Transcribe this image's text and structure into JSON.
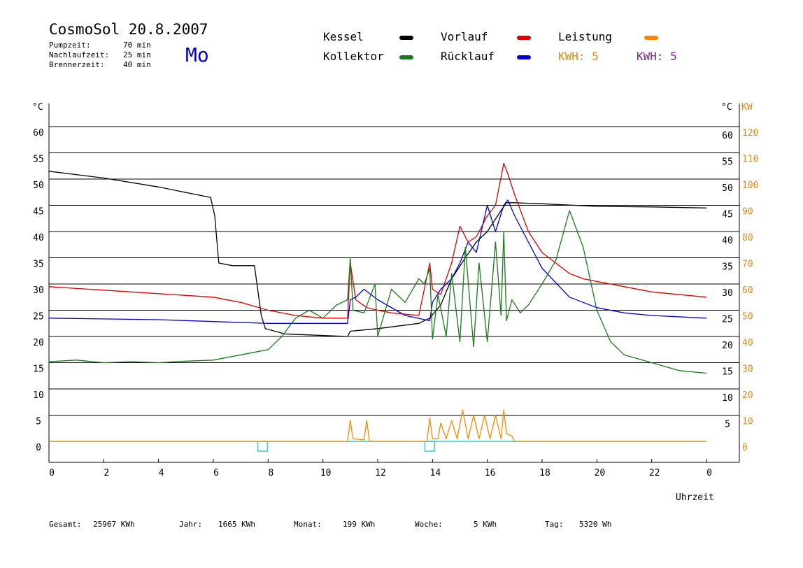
{
  "header": {
    "title": "CosmoSol 20.8.2007",
    "params": [
      {
        "label": "Pumpzeit:",
        "value": "70 min"
      },
      {
        "label": "Nachlaufzeit:",
        "value": "25 min"
      },
      {
        "label": "Brennerzeit:",
        "value": "40 min"
      }
    ],
    "day": "Mo"
  },
  "legend": {
    "kessel": {
      "label": "Kessel",
      "color": "#000000"
    },
    "vorlauf": {
      "label": "Vorlauf",
      "color": "#dd0000"
    },
    "leistung": {
      "label": "Leistung",
      "color": "#ff8800"
    },
    "kollektor": {
      "label": "Kollektor",
      "color": "#1a7a1a"
    },
    "ruecklauf": {
      "label": "Rücklauf",
      "color": "#0000cc"
    },
    "kwh1": {
      "label": "KWH: 5",
      "color": "#e08a1a"
    },
    "kwh2": {
      "label": "KWH: 5",
      "color": "#7a2a8a"
    }
  },
  "footer": {
    "gesamt_label": "Gesamt:",
    "gesamt": "25967 KWh",
    "jahr_label": "Jahr:",
    "jahr": "1665 KWh",
    "monat_label": "Monat:",
    "monat": "199 KWh",
    "woche_label": "Woche:",
    "woche": "5 KWh",
    "tag_label": "Tag:",
    "tag": "5320 Wh"
  },
  "chart_data": {
    "type": "line",
    "xlabel": "Uhrzeit",
    "ylabel_left": "°C",
    "ylabel_right_temp": "°C",
    "ylabel_right_power": "KW",
    "xlim": [
      0,
      24
    ],
    "ylim": [
      0,
      60
    ],
    "y2lim": [
      0,
      120
    ],
    "x_ticks": [
      "0",
      "2",
      "4",
      "6",
      "8",
      "10",
      "12",
      "14",
      "16",
      "18",
      "20",
      "22",
      "0"
    ],
    "y_ticks": [
      "0",
      "5",
      "10",
      "15",
      "20",
      "25",
      "30",
      "35",
      "40",
      "45",
      "50",
      "55",
      "60"
    ],
    "y_ticks_right": [
      "5",
      "10",
      "15",
      "20",
      "25",
      "30",
      "35",
      "40",
      "45",
      "50",
      "55",
      "60"
    ],
    "y2_ticks": [
      "0",
      "10",
      "20",
      "30",
      "40",
      "50",
      "60",
      "70",
      "80",
      "90",
      "100",
      "110",
      "120"
    ],
    "grid": true,
    "colors": {
      "kessel": "#000000",
      "vorlauf": "#dd0000",
      "ruecklauf": "#0000cc",
      "kollektor": "#1a7a1a",
      "leistung": "#ff8800",
      "kwh": "#7a2a8a",
      "pump": "#33cccc"
    },
    "series": [
      {
        "name": "Kessel",
        "x": [
          0,
          2,
          4,
          5.9,
          6.05,
          6.2,
          6.7,
          7.5,
          7.75,
          7.9,
          8.6,
          9.5,
          10.9,
          11.0,
          12.0,
          13.5,
          13.9,
          14.3,
          14.7,
          15.2,
          15.6,
          16.0,
          16.5,
          16.7,
          17.0,
          18.0,
          20.0,
          22.0,
          24.0
        ],
        "y": [
          51.5,
          50.2,
          48.5,
          46.5,
          43,
          34,
          33.5,
          33.5,
          24,
          21.5,
          20.5,
          20.3,
          20.0,
          21.0,
          21.5,
          22.5,
          23.5,
          26,
          31,
          35,
          38,
          40,
          44,
          45.5,
          45.5,
          45.3,
          44.8,
          44.7,
          44.5
        ]
      },
      {
        "name": "Vorlauf",
        "x": [
          0,
          3,
          6,
          7,
          8,
          9,
          10,
          10.9,
          11.0,
          11.2,
          11.6,
          12.0,
          12.5,
          13.5,
          13.9,
          14.0,
          14.3,
          14.7,
          15.0,
          15.3,
          15.6,
          16.0,
          16.3,
          16.6,
          16.75,
          17.0,
          17.5,
          18.0,
          19.0,
          19.5,
          20.0,
          21.0,
          22.0,
          24.0
        ],
        "y": [
          29.5,
          28.5,
          27.5,
          26.5,
          25,
          24,
          23.5,
          23.5,
          34,
          27,
          25.5,
          25,
          24.5,
          24,
          34,
          29,
          28,
          34,
          41,
          38,
          39,
          43,
          45,
          53,
          51,
          47,
          40,
          36,
          32,
          31,
          30.5,
          29.5,
          28.5,
          27.5
        ]
      },
      {
        "name": "Rücklauf",
        "x": [
          0,
          4,
          8,
          10,
          10.9,
          11.0,
          11.2,
          11.5,
          12.0,
          13.0,
          13.9,
          14.0,
          14.3,
          14.7,
          15.0,
          15.3,
          15.6,
          16.0,
          16.3,
          16.6,
          16.75,
          17.0,
          17.5,
          18.0,
          19.0,
          20.0,
          21.0,
          22.0,
          24.0
        ],
        "y": [
          23.5,
          23.2,
          22.5,
          22.5,
          22.5,
          27,
          27.5,
          29,
          27,
          24,
          23,
          26.5,
          29,
          31,
          34,
          38,
          36,
          45,
          40,
          45,
          46,
          43,
          38,
          33,
          27.5,
          25.5,
          24.5,
          24,
          23.5
        ]
      },
      {
        "name": "Kollektor",
        "x": [
          0,
          1,
          2,
          3,
          4,
          5,
          6,
          7,
          8,
          8.5,
          9,
          9.5,
          10,
          10.5,
          10.9,
          11.0,
          11.1,
          11.5,
          11.9,
          12.0,
          12.5,
          13.0,
          13.5,
          13.7,
          13.9,
          14.0,
          14.2,
          14.5,
          14.7,
          15.0,
          15.2,
          15.5,
          15.7,
          16.0,
          16.3,
          16.5,
          16.6,
          16.7,
          16.9,
          17.2,
          17.5,
          18.0,
          18.5,
          19.0,
          19.5,
          20.0,
          20.5,
          21.0,
          22.0,
          23.0,
          24.0
        ],
        "y": [
          15.2,
          15.5,
          15,
          15.2,
          15,
          15.3,
          15.5,
          16.5,
          17.5,
          20,
          23.5,
          25,
          23.5,
          26,
          27,
          35,
          25,
          24.5,
          30,
          20,
          29,
          26.5,
          31,
          30,
          33,
          19.5,
          28,
          20,
          32,
          19,
          37,
          18,
          34,
          19,
          38,
          24,
          40,
          23,
          27,
          24.5,
          26,
          30,
          34.5,
          44,
          37,
          25,
          19,
          16.5,
          15,
          13.5,
          13
        ]
      },
      {
        "name": "Leistung",
        "x": [
          0,
          10.9,
          11.0,
          11.1,
          11.5,
          11.6,
          11.7,
          13.8,
          13.9,
          14.0,
          14.2,
          14.3,
          14.5,
          14.7,
          14.9,
          15.1,
          15.3,
          15.5,
          15.7,
          15.9,
          16.1,
          16.3,
          16.5,
          16.6,
          16.7,
          16.9,
          17.0,
          24.0
        ],
        "y": [
          0,
          0,
          4,
          0.5,
          0.3,
          4,
          0,
          0,
          4.5,
          0.5,
          0.5,
          3.5,
          0.5,
          4,
          0.5,
          6,
          0.5,
          5,
          0.5,
          5,
          0.5,
          5,
          0.5,
          6,
          1.5,
          1,
          0,
          0
        ]
      }
    ],
    "pump_markers": [
      7.8,
      13.9
    ]
  }
}
